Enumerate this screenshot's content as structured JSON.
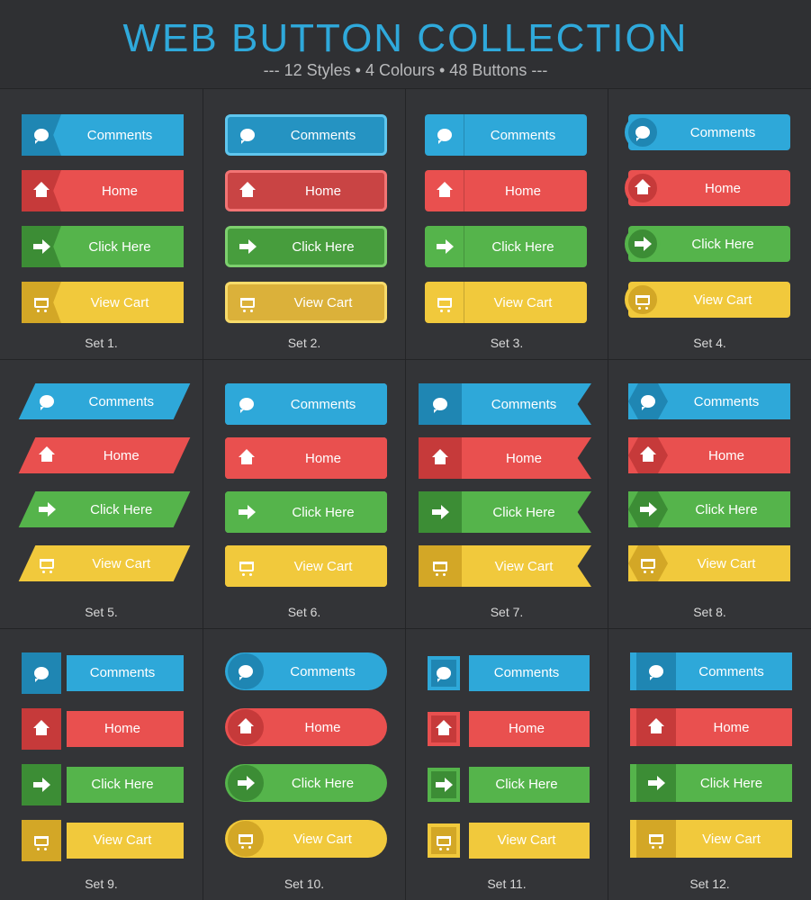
{
  "header": {
    "title": "WEB BUTTON COLLECTION",
    "subtitle": "--- 12 Styles • 4 Colours • 48 Buttons ---"
  },
  "buttons": [
    "Comments",
    "Home",
    "Click Here",
    "View Cart"
  ],
  "icons": [
    "chat-bubble-icon",
    "home-icon",
    "arrow-right-icon",
    "shopping-cart-icon"
  ],
  "colors": {
    "blue": "#2ea8d9",
    "red": "#e9504f",
    "green": "#55b44b",
    "yellow": "#f1c93c",
    "background": "#2f3033",
    "title": "#2fa9db"
  },
  "sets": [
    "Set 1.",
    "Set 2.",
    "Set 3.",
    "Set 4.",
    "Set 5.",
    "Set 6.",
    "Set 7.",
    "Set 8.",
    "Set 9.",
    "Set 10.",
    "Set 11.",
    "Set 12."
  ]
}
